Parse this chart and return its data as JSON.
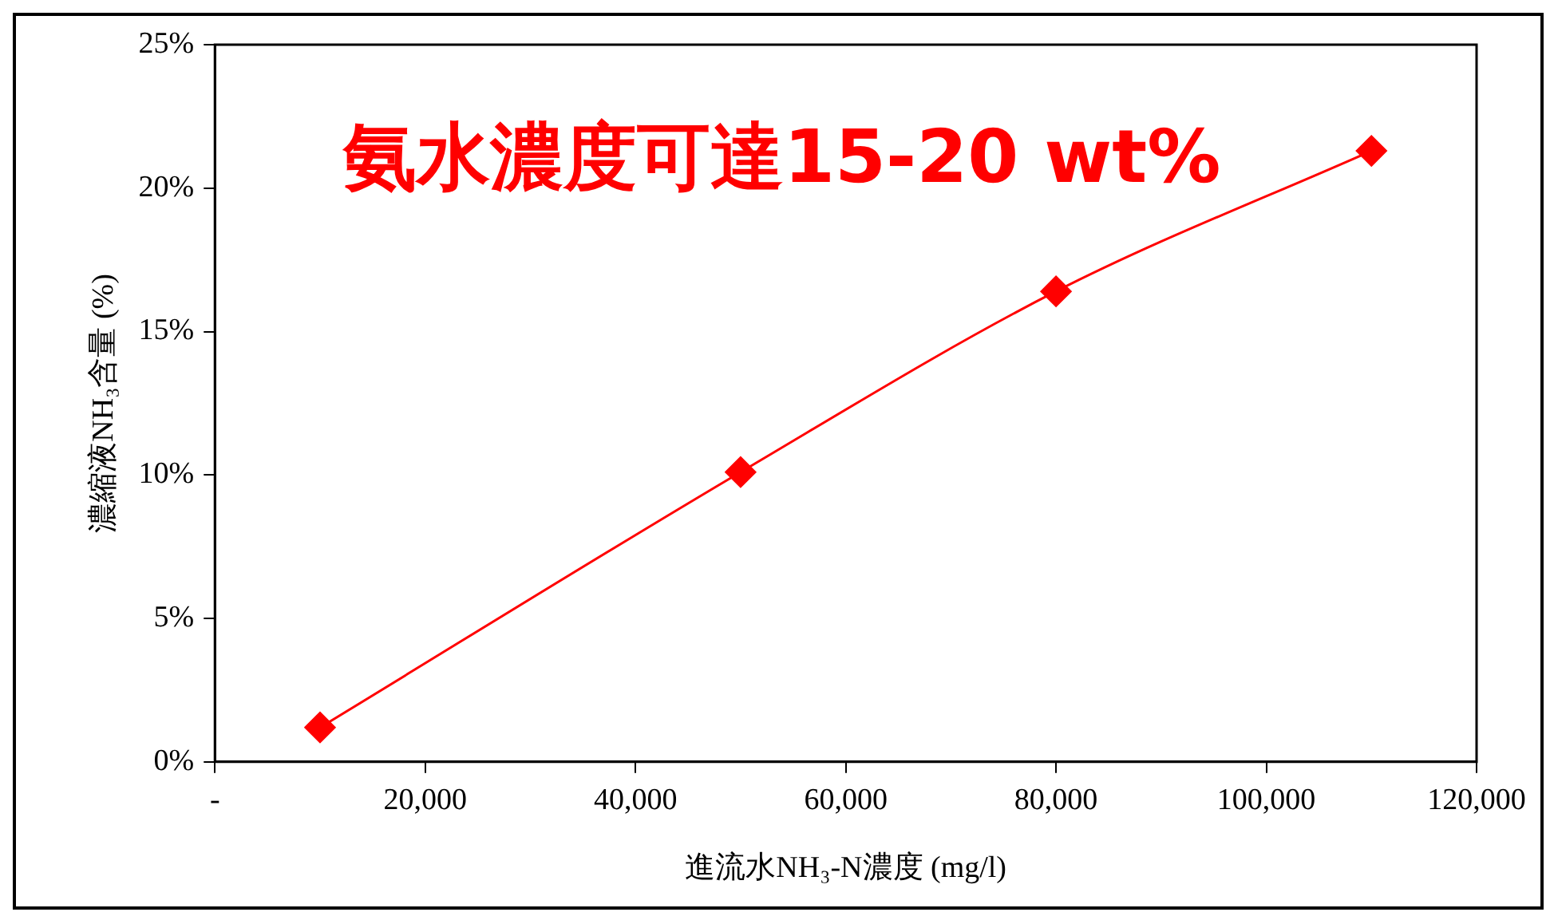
{
  "chart_data": {
    "type": "line",
    "x": [
      10000,
      50000,
      80000,
      110000
    ],
    "series": [
      {
        "color": "#ff0000",
        "values": [
          1.2,
          10.1,
          16.4,
          21.3
        ]
      }
    ],
    "xlim": [
      0,
      120000
    ],
    "xticks": [
      {
        "value": 0,
        "label": "-"
      },
      {
        "value": 20000,
        "label": "20,000"
      },
      {
        "value": 40000,
        "label": "40,000"
      },
      {
        "value": 60000,
        "label": "60,000"
      },
      {
        "value": 80000,
        "label": "80,000"
      },
      {
        "value": 100000,
        "label": "100,000"
      },
      {
        "value": 120000,
        "label": "120,000"
      }
    ],
    "ylim": [
      0,
      25
    ],
    "yticks": [
      {
        "value": 0,
        "label": "0%"
      },
      {
        "value": 5,
        "label": "5%"
      },
      {
        "value": 10,
        "label": "10%"
      },
      {
        "value": 15,
        "label": "15%"
      },
      {
        "value": 20,
        "label": "20%"
      },
      {
        "value": 25,
        "label": "25%"
      }
    ],
    "xlabel": "進流水NH₃-N濃度 (mg/l)",
    "ylabel": "濃縮液NH₃含量 (%)",
    "annotations": [
      "氨水濃度可達15-20 wt%"
    ],
    "grid": false,
    "legend": false,
    "marker": "diamond",
    "line_style": "solid"
  }
}
